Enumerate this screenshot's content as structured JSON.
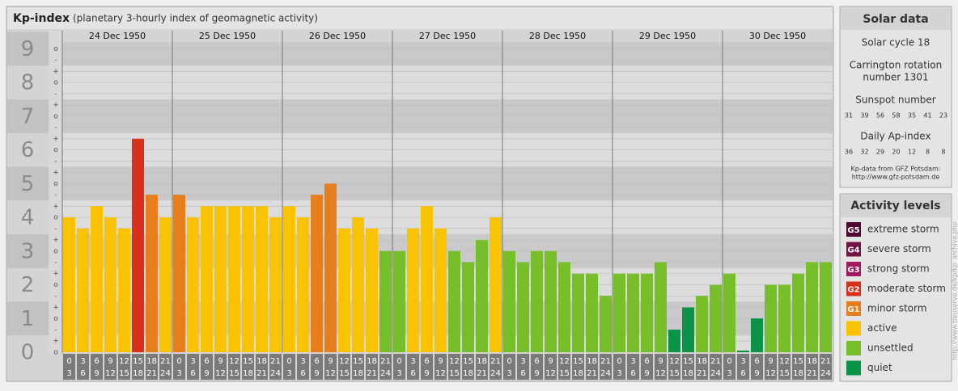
{
  "chart_data": {
    "type": "bar",
    "title": "Kp-index",
    "subtitle": "(planetary 3-hourly index of geomagnetic activity)",
    "days": [
      "24 Dec 1950",
      "25 Dec 1950",
      "26 Dec 1950",
      "27 Dec 1950",
      "28 Dec 1950",
      "29 Dec 1950",
      "30 Dec 1950"
    ],
    "hour_start": [
      0,
      3,
      6,
      9,
      12,
      15,
      18,
      21
    ],
    "hour_end": [
      3,
      6,
      9,
      12,
      15,
      18,
      21,
      24
    ],
    "values": [
      4,
      3.67,
      4.33,
      4,
      3.67,
      6.33,
      4.67,
      4,
      4.67,
      4,
      4.33,
      4.33,
      4.33,
      4.33,
      4.33,
      4,
      4.33,
      4,
      4.67,
      5,
      3.67,
      4,
      3.67,
      3,
      3,
      3.67,
      4.33,
      3.67,
      3,
      2.67,
      3.33,
      4,
      3,
      2.67,
      3,
      3,
      2.67,
      2.33,
      2.33,
      1.67,
      2.33,
      2.33,
      2.33,
      2.67,
      0.67,
      1.33,
      1.67,
      2,
      2.33,
      0,
      1,
      2,
      2,
      2.33,
      2.67,
      2.67
    ],
    "colors": [
      "#f9c300",
      "#f9c300",
      "#f9c300",
      "#f9c300",
      "#f9c300",
      "#d9301e",
      "#e67e1e",
      "#f9c300",
      "#e67e1e",
      "#f9c300",
      "#f9c300",
      "#f9c300",
      "#f9c300",
      "#f9c300",
      "#f9c300",
      "#f9c300",
      "#f9c300",
      "#f9c300",
      "#e67e1e",
      "#e67e1e",
      "#f9c300",
      "#f9c300",
      "#f9c300",
      "#77bf2a",
      "#77bf2a",
      "#f9c300",
      "#f9c300",
      "#f9c300",
      "#77bf2a",
      "#77bf2a",
      "#77bf2a",
      "#f9c300",
      "#77bf2a",
      "#77bf2a",
      "#77bf2a",
      "#77bf2a",
      "#77bf2a",
      "#77bf2a",
      "#77bf2a",
      "#77bf2a",
      "#77bf2a",
      "#77bf2a",
      "#77bf2a",
      "#77bf2a",
      "#0b9448",
      "#0b9448",
      "#77bf2a",
      "#77bf2a",
      "#77bf2a",
      "#0b9448",
      "#0b9448",
      "#77bf2a",
      "#77bf2a",
      "#77bf2a",
      "#77bf2a",
      "#77bf2a"
    ],
    "ylim": [
      0,
      9.2
    ],
    "yticks": [
      0,
      1,
      2,
      3,
      4,
      5,
      6,
      7,
      8,
      9
    ],
    "yticks_minor": [
      {
        "value": 0,
        "label": "o"
      },
      {
        "value": 0.33,
        "label": "+"
      },
      {
        "value": 0.67,
        "label": "-"
      },
      {
        "value": 1,
        "label": "o"
      },
      {
        "value": 1.33,
        "label": "+"
      },
      {
        "value": 1.67,
        "label": "-"
      },
      {
        "value": 2,
        "label": "o"
      },
      {
        "value": 2.33,
        "label": "+"
      },
      {
        "value": 2.67,
        "label": "-"
      },
      {
        "value": 3,
        "label": "o"
      },
      {
        "value": 3.33,
        "label": "+"
      },
      {
        "value": 3.67,
        "label": "-"
      },
      {
        "value": 4,
        "label": "o"
      },
      {
        "value": 4.33,
        "label": "+"
      },
      {
        "value": 4.67,
        "label": "-"
      },
      {
        "value": 5,
        "label": "o"
      },
      {
        "value": 5.33,
        "label": "+"
      },
      {
        "value": 5.67,
        "label": "-"
      },
      {
        "value": 6,
        "label": "o"
      },
      {
        "value": 6.33,
        "label": "+"
      },
      {
        "value": 6.67,
        "label": "-"
      },
      {
        "value": 7,
        "label": "o"
      },
      {
        "value": 7.33,
        "label": "+"
      },
      {
        "value": 7.67,
        "label": "-"
      },
      {
        "value": 8,
        "label": "o"
      },
      {
        "value": 8.33,
        "label": "+"
      },
      {
        "value": 8.67,
        "label": "-"
      },
      {
        "value": 9,
        "label": "o"
      }
    ],
    "grid": true
  },
  "solar": {
    "title": "Solar data",
    "cycle": "Solar cycle 18",
    "carrington": [
      "Carrington rotation",
      "number 1301"
    ],
    "sunspot_title": "Sunspot number",
    "sunspots": [
      31,
      39,
      56,
      58,
      35,
      41,
      23
    ],
    "ap_title": "Daily Ap-index",
    "ap": [
      36,
      32,
      29,
      20,
      12,
      8,
      8
    ],
    "source": [
      "Kp-data from GFZ Potsdam:",
      "http://www.gfz-potsdam.de"
    ]
  },
  "levels": {
    "title": "Activity levels",
    "items": [
      {
        "badge": "G5",
        "label": "extreme storm",
        "color": "#4e0a2c"
      },
      {
        "badge": "G4",
        "label": "severe storm",
        "color": "#701446"
      },
      {
        "badge": "G3",
        "label": "strong storm",
        "color": "#a3195e"
      },
      {
        "badge": "G2",
        "label": "moderate storm",
        "color": "#d9301e"
      },
      {
        "badge": "G1",
        "label": "minor storm",
        "color": "#e67e1e"
      },
      {
        "label": "active",
        "color": "#f9c300"
      },
      {
        "label": "unsettled",
        "color": "#77bf2a"
      },
      {
        "label": "quiet",
        "color": "#0b9448"
      }
    ]
  },
  "side_note": "http://www.tieuserve.de/kp/kp_archive.php"
}
